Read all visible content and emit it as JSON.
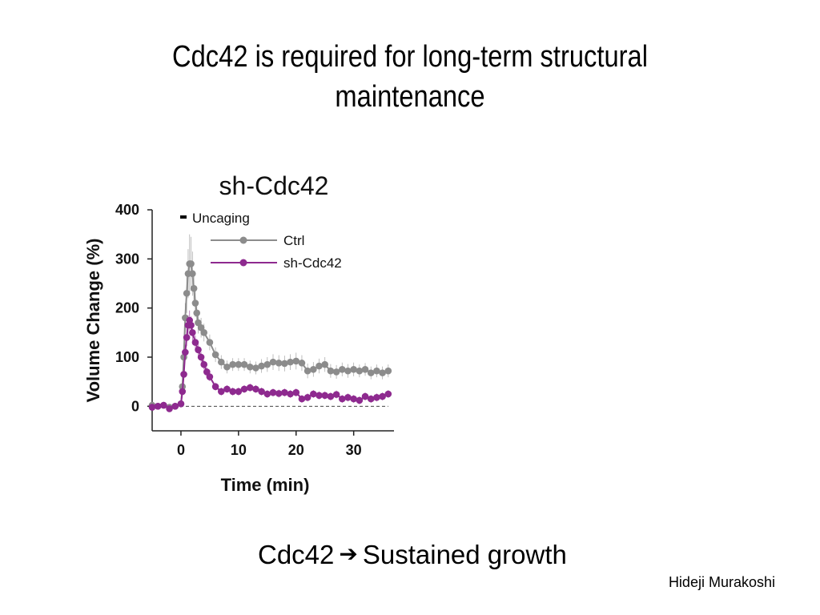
{
  "slide": {
    "title_line1": "Cdc42 is required for long-term structural",
    "title_line2": "maintenance",
    "conclusion_left": "Cdc42",
    "conclusion_arrow": "➔",
    "conclusion_right": "Sustained growth",
    "author": "Hideji Murakoshi"
  },
  "colors": {
    "ctrl": "#8c8c8c",
    "sh": "#8e2a8f",
    "axis": "#222222"
  },
  "chart_data": {
    "type": "line",
    "title": "sh-Cdc42",
    "xlabel": "Time (min)",
    "ylabel": "Volume Change (%)",
    "xlim": [
      -5,
      37
    ],
    "ylim": [
      -50,
      400
    ],
    "xticks": [
      0,
      10,
      20,
      30
    ],
    "yticks": [
      0,
      100,
      200,
      300,
      400
    ],
    "annotation": "Uncaging",
    "uncaging_interval": [
      0,
      1
    ],
    "reference_line_y": 0,
    "legend_position": "top-right",
    "series": [
      {
        "name": "Ctrl",
        "color": "#8c8c8c",
        "x": [
          -5,
          -4,
          -3,
          -2,
          -1,
          0,
          0.25,
          0.5,
          0.75,
          1,
          1.25,
          1.5,
          1.75,
          2,
          2.25,
          2.5,
          2.75,
          3,
          3.5,
          4,
          5,
          6,
          7,
          8,
          9,
          10,
          11,
          12,
          13,
          14,
          15,
          16,
          17,
          18,
          19,
          20,
          21,
          22,
          23,
          24,
          25,
          26,
          27,
          28,
          29,
          30,
          31,
          32,
          33,
          34,
          35,
          36
        ],
        "values": [
          2,
          0,
          2,
          -2,
          0,
          5,
          40,
          100,
          180,
          230,
          270,
          290,
          290,
          270,
          240,
          210,
          190,
          170,
          160,
          150,
          130,
          105,
          90,
          80,
          85,
          85,
          85,
          80,
          78,
          82,
          85,
          90,
          88,
          87,
          90,
          92,
          88,
          72,
          75,
          82,
          85,
          72,
          70,
          75,
          72,
          75,
          72,
          75,
          68,
          72,
          68,
          72
        ],
        "err": [
          6,
          6,
          6,
          6,
          6,
          8,
          10,
          20,
          30,
          40,
          50,
          60,
          55,
          45,
          35,
          28,
          25,
          22,
          20,
          18,
          16,
          15,
          14,
          13,
          13,
          13,
          13,
          13,
          13,
          14,
          15,
          16,
          16,
          16,
          16,
          17,
          16,
          15,
          15,
          15,
          15,
          14,
          14,
          14,
          14,
          14,
          13,
          13,
          13,
          13,
          13,
          13
        ]
      },
      {
        "name": "sh-Cdc42",
        "color": "#8e2a8f",
        "x": [
          -5,
          -4,
          -3,
          -2,
          -1,
          0,
          0.25,
          0.5,
          0.75,
          1,
          1.25,
          1.5,
          1.75,
          2,
          2.5,
          3,
          3.5,
          4,
          4.5,
          5,
          6,
          7,
          8,
          9,
          10,
          11,
          12,
          13,
          14,
          15,
          16,
          17,
          18,
          19,
          20,
          21,
          22,
          23,
          24,
          25,
          26,
          27,
          28,
          29,
          30,
          31,
          32,
          33,
          34,
          35,
          36
        ],
        "values": [
          -2,
          0,
          2,
          -5,
          0,
          5,
          30,
          65,
          110,
          140,
          165,
          175,
          165,
          150,
          130,
          115,
          100,
          85,
          70,
          60,
          40,
          30,
          35,
          30,
          30,
          35,
          38,
          35,
          30,
          25,
          28,
          26,
          28,
          25,
          28,
          15,
          18,
          25,
          22,
          22,
          20,
          24,
          15,
          18,
          15,
          12,
          20,
          15,
          18,
          20,
          25
        ],
        "err": [
          5,
          5,
          5,
          5,
          5,
          6,
          8,
          12,
          15,
          18,
          20,
          20,
          18,
          16,
          14,
          12,
          10,
          10,
          9,
          9,
          8,
          8,
          8,
          8,
          8,
          8,
          8,
          8,
          8,
          8,
          8,
          8,
          8,
          8,
          8,
          8,
          8,
          8,
          8,
          8,
          8,
          8,
          8,
          8,
          8,
          8,
          8,
          8,
          8,
          8,
          8
        ]
      }
    ]
  }
}
